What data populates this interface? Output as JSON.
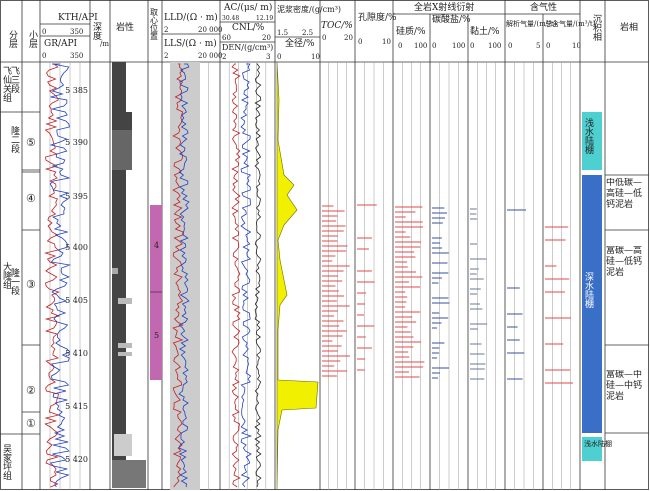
{
  "columns": {
    "fen_ceng": "分层",
    "xiao_ceng": "小层",
    "gamma_kth": "KTH/API",
    "gamma_kth_range": [
      "0",
      "350"
    ],
    "gamma_gr": "GR/API",
    "gamma_gr_range": [
      "0",
      "350"
    ],
    "depth": "深度",
    "depth_unit": "/m",
    "lithology": "岩性",
    "core": "取心位置",
    "lld": "LLD/(Ω · m)",
    "lld_range": [
      "2",
      "20 000"
    ],
    "lls": "LLS/(Ω · m)",
    "lls_range": [
      "2",
      "20 000"
    ],
    "ac": "AC/(μs/ m)",
    "ac_range": [
      "30.48",
      "12.19"
    ],
    "cnl": "CNL/%",
    "cnl_range": [
      "60",
      "20"
    ],
    "den": "DEN/(g/cm³)",
    "den_range": [
      "2",
      "3"
    ],
    "mud_density": "泥浆密度/(g/cm³)",
    "mud_range": [
      "1.5",
      "2.5"
    ],
    "caliper": "全径/%",
    "caliper_range": [
      "0",
      "10"
    ],
    "toc": "TOC/%",
    "toc_range": [
      "0",
      "20"
    ],
    "porosity": "孔隙度/%",
    "porosity_range": [
      "0",
      "10"
    ],
    "xrd": "全岩X射线衍射",
    "silica": "硅质/%",
    "silica_range": [
      "0",
      "100"
    ],
    "carbonate": "碳酸盐/%",
    "carbonate_range": [
      "0",
      "100"
    ],
    "clay": "黏土/%",
    "clay_range": [
      "0",
      "100"
    ],
    "gas": "含气性",
    "desorbed_gas": "解析气量/(m³/t)",
    "desorbed_range": [
      "0",
      "5"
    ],
    "total_gas": "总含气量/(m³/t)",
    "total_range": [
      "0",
      "10"
    ],
    "facies": "沉积相",
    "lithofacies": "岩相"
  },
  "formations": [
    {
      "name": "飞仙关组"
    },
    {
      "name": "大隆组"
    },
    {
      "name": "吴家坪组"
    }
  ],
  "members": [
    {
      "name": "飞三段"
    },
    {
      "name": "隆二段"
    },
    {
      "name": "隆一段"
    }
  ],
  "sublayers": [
    "⑤",
    "④",
    "③",
    "②",
    "①"
  ],
  "depth_ticks": [
    "5 385",
    "5 390",
    "5 395",
    "5 400",
    "5 405",
    "5 410",
    "5 415",
    "5 420"
  ],
  "cores": [
    "4",
    "5"
  ],
  "facies": [
    {
      "name": "浅水陆棚",
      "color": "#4ecfd0"
    },
    {
      "name": "深水陆棚",
      "color": "#3a6fc7"
    },
    {
      "name": "浅水陆棚",
      "color": "#4ecfd0"
    }
  ],
  "lithofacies": [
    "中低碳—高硅—低钙泥岩",
    "富碳—高硅—低钙泥岩",
    "富碳—中硅—中钙泥岩"
  ],
  "colors": {
    "core": "#c268b0",
    "mud_fill": "#f0f000",
    "toc_bar": "#e04848",
    "silica_bar": "#e04848",
    "carbonate_bar": "#3a4fa0",
    "clay_bar": "#6a7a9a",
    "gas_bar": "#e04848",
    "desorbed_bar": "#3a4fa0"
  }
}
